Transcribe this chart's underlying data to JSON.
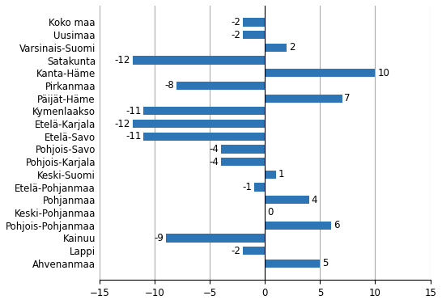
{
  "categories": [
    "Koko maa",
    "Uusimaa",
    "Varsinais-Suomi",
    "Satakunta",
    "Kanta-Häme",
    "Pirkanmaa",
    "Päijät-Häme",
    "Kymenlaakso",
    "Etelä-Karjala",
    "Etelä-Savo",
    "Pohjois-Savo",
    "Pohjois-Karjala",
    "Keski-Suomi",
    "Etelä-Pohjanmaa",
    "Pohjanmaa",
    "Keski-Pohjanmaa",
    "Pohjois-Pohjanmaa",
    "Kainuu",
    "Lappi",
    "Ahvenanmaa"
  ],
  "values": [
    -2,
    -2,
    2,
    -12,
    10,
    -8,
    7,
    -11,
    -12,
    -11,
    -4,
    -4,
    1,
    -1,
    4,
    0,
    6,
    -9,
    -2,
    5
  ],
  "bar_color": "#2E75B6",
  "xlim": [
    -15,
    15
  ],
  "xticks": [
    -15,
    -10,
    -5,
    0,
    5,
    10,
    15
  ],
  "grid_color": "#AAAAAA",
  "label_fontsize": 8.5,
  "value_fontsize": 8.5
}
